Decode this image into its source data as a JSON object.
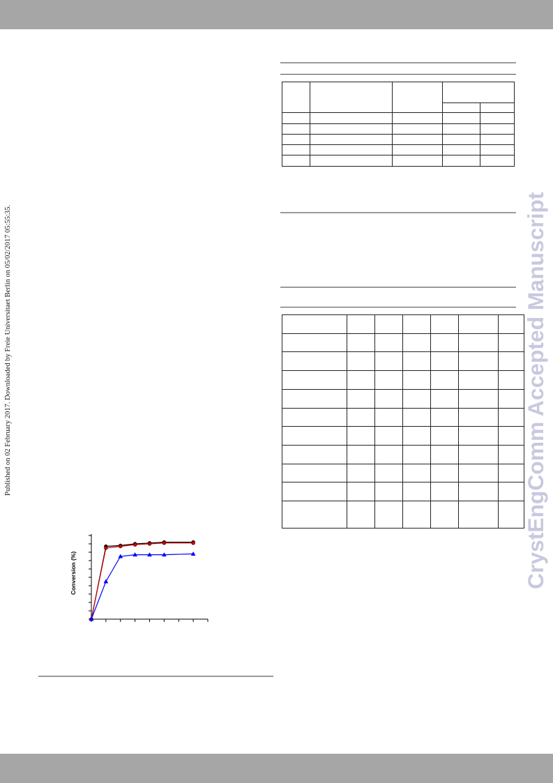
{
  "page": {
    "side_note": "Published on 02 February 2017. Downloaded by Freie Universitaet Berlin on 05/02/2017 05:55:35.",
    "watermark": "CrystEngComm Accepted Manuscript"
  },
  "colors": {
    "bars": "#a6a6a6",
    "watermark": "#c8c8df"
  },
  "chart_data": {
    "type": "line",
    "ylabel": "Conversion (%)",
    "x": [
      0,
      1,
      2,
      3,
      4,
      5,
      7
    ],
    "xlim": [
      0,
      8
    ],
    "ylim": [
      0,
      100
    ],
    "x_tick_step": 1,
    "y_tick_step": 10,
    "grid": false,
    "legend": "none",
    "series": [
      {
        "color": "#000000",
        "marker": "circle",
        "values": [
          0,
          87,
          88,
          90,
          91,
          92,
          92
        ]
      },
      {
        "color": "#cc0000",
        "marker": "circle",
        "values": [
          0,
          85,
          87,
          89,
          90,
          91,
          91
        ]
      },
      {
        "color": "#0000ff",
        "marker": "triangle",
        "values": [
          0,
          45,
          75,
          77,
          77,
          77,
          78
        ]
      }
    ]
  }
}
